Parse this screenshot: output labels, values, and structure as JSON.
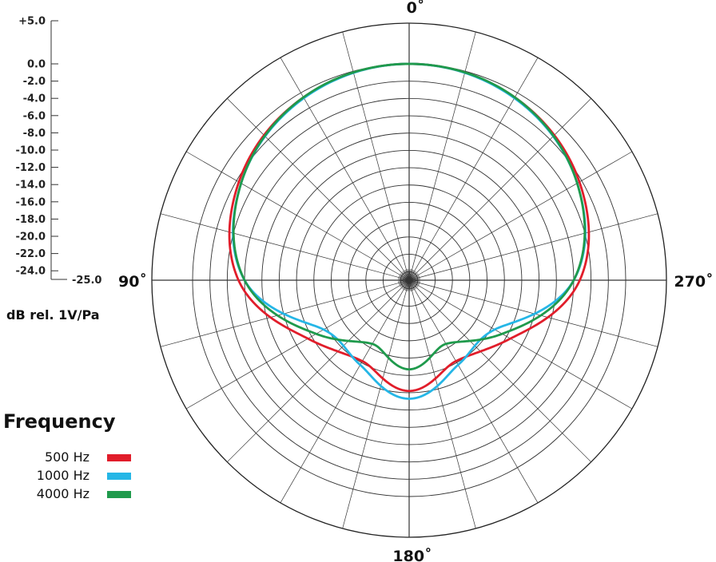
{
  "chart_data": {
    "type": "polar",
    "angle_labels": [
      "0˚",
      "90˚",
      "180˚",
      "270˚"
    ],
    "angle_values": [
      0,
      90,
      180,
      270
    ],
    "radial_axis": {
      "ticks": [
        "+5.0",
        "0.0",
        "-2.0",
        "-4.0",
        "-6.0",
        "-8.0",
        "-10.0",
        "-12.0",
        "-14.0",
        "-16.0",
        "-18.0",
        "-20.0",
        "-22.0",
        "-24.0"
      ],
      "min_label": "-25.0",
      "range": [
        -25,
        5
      ],
      "unit_label": "dB rel. 1V/Pa"
    },
    "legend": {
      "title": "Frequency",
      "placement": "bottom-left"
    },
    "series": [
      {
        "name": "500 Hz",
        "color": "#e11d2a",
        "angles": [
          0,
          30,
          60,
          90,
          120,
          150,
          180,
          210,
          240,
          270,
          300,
          330
        ],
        "values": [
          0,
          -0.6,
          -2.3,
          -5.3,
          -11.5,
          -14.2,
          -12.2,
          -14.2,
          -11.5,
          -5.3,
          -2.3,
          -0.6
        ]
      },
      {
        "name": "1000 Hz",
        "color": "#25b6e6",
        "angles": [
          0,
          30,
          60,
          90,
          120,
          150,
          180,
          210,
          240,
          270,
          300,
          330
        ],
        "values": [
          0,
          -0.7,
          -2.6,
          -6.0,
          -13.6,
          -13.7,
          -11.3,
          -13.7,
          -13.6,
          -6.0,
          -2.6,
          -0.7
        ]
      },
      {
        "name": "4000 Hz",
        "color": "#1f9a4c",
        "angles": [
          0,
          30,
          60,
          90,
          120,
          150,
          180,
          210,
          240,
          270,
          300,
          330
        ],
        "values": [
          0,
          -0.6,
          -2.6,
          -6.0,
          -12.6,
          -16.5,
          -14.7,
          -16.5,
          -12.6,
          -6.0,
          -2.6,
          -0.6
        ]
      }
    ]
  }
}
